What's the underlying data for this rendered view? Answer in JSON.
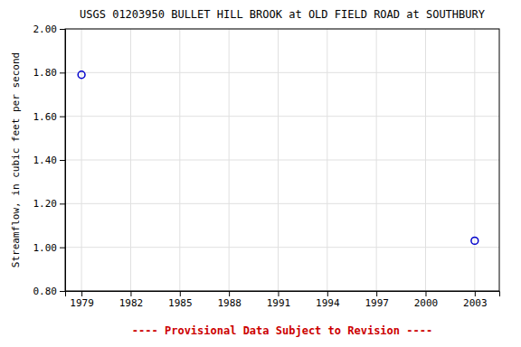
{
  "chart_data": {
    "type": "scatter",
    "title": "USGS 01203950 BULLET HILL BROOK at OLD FIELD ROAD at SOUTHBURY",
    "ylabel": "Streamflow, in cubic feet per second",
    "x": [
      1979,
      2003
    ],
    "values": [
      1.79,
      1.03
    ],
    "color": "#0000cc",
    "marker": "circle",
    "xlim": [
      1978,
      2004.5
    ],
    "ylim": [
      0.8,
      2.0
    ],
    "xticks": [
      1979,
      1982,
      1985,
      1988,
      1991,
      1994,
      1997,
      2000,
      2003
    ],
    "yticks": [
      {
        "value": 0.8,
        "label": "0.80"
      },
      {
        "value": 1.0,
        "label": "1.00"
      },
      {
        "value": 1.2,
        "label": "1.20"
      },
      {
        "value": 1.4,
        "label": "1.40"
      },
      {
        "value": 1.6,
        "label": "1.60"
      },
      {
        "value": 1.8,
        "label": "1.80"
      },
      {
        "value": 2.0,
        "label": "2.00"
      }
    ],
    "grid": true,
    "annotations": [
      {
        "text": "---- Provisional Data Subject to Revision ----",
        "color": "#cc0000"
      }
    ]
  }
}
